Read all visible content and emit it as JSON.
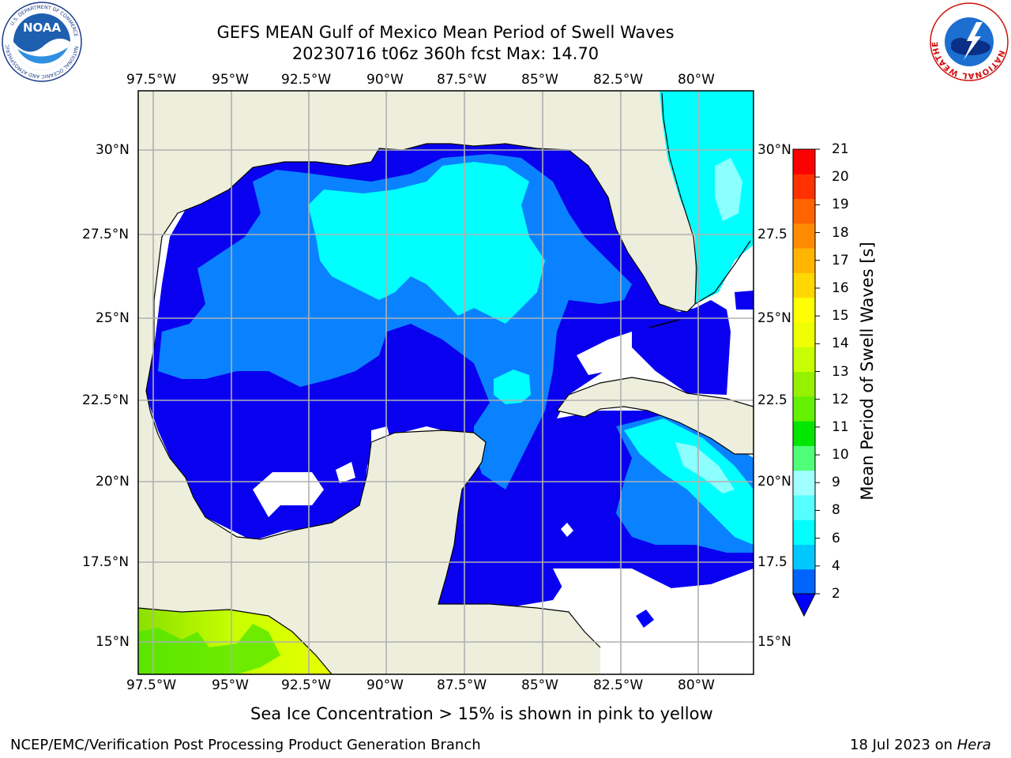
{
  "title": {
    "line1": "GEFS MEAN Gulf of Mexico Mean Period of Swell Waves",
    "line2": "20230716 t06z 360h fcst   Max: 14.70"
  },
  "logos": {
    "noaa_text": "NOAA",
    "noaa_ring_top": "NATIONAL OCEANIC AND ATMOSPHERIC ADMINISTRATION",
    "noaa_ring_bottom": "U.S. DEPARTMENT OF COMMERCE",
    "nws_ring": "NATIONAL WEATHER SERVICE"
  },
  "map": {
    "lon_labels": [
      "97.5°W",
      "95°W",
      "92.5°W",
      "90°W",
      "87.5°W",
      "85°W",
      "82.5°W",
      "80°W"
    ],
    "lat_labels_left": [
      "30°N",
      "27.5°N",
      "25°N",
      "22.5°N",
      "20°N",
      "17.5°N",
      "15°N"
    ],
    "lat_labels_right": [
      "30°N",
      "27.5",
      "25°N",
      "22.5",
      "20°N",
      "17.5",
      "15°N"
    ],
    "colors": {
      "land": "#eeeedd",
      "grid": "#b0b0b0",
      "band_2_4": "#0a00f0",
      "band_4_6": "#0a82ff",
      "band_6_8": "#00ffff",
      "band_8_10": "#8cffff",
      "band_12_14": "#c8ff00",
      "band_10_12": "#4ce600"
    }
  },
  "colorbar": {
    "label": "Mean Period of Swell Waves [s]",
    "ticks": [
      "21",
      "20",
      "19",
      "18",
      "17",
      "16",
      "15",
      "14",
      "13",
      "12",
      "11",
      "10",
      "9",
      "8",
      "6",
      "4",
      "2"
    ],
    "colors": [
      "#0064ff",
      "#00c8ff",
      "#00ffff",
      "#55ffff",
      "#a0ffff",
      "#50ff78",
      "#00e600",
      "#64f000",
      "#96f000",
      "#c8ff00",
      "#f0ff00",
      "#ffff00",
      "#ffd700",
      "#ffb400",
      "#ff8c00",
      "#ff6400",
      "#ff3200",
      "#ff0000"
    ],
    "extend_color": "#0000ff"
  },
  "note": "Sea Ice Concentration > 15% is shown in pink to yellow",
  "footer": {
    "left": "NCEP/EMC/Verification Post Processing Product Generation Branch",
    "date": "18 Jul 2023 on",
    "machine": "Hera"
  }
}
